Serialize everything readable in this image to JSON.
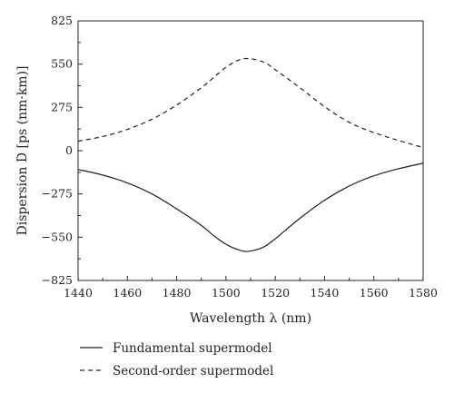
{
  "chart_data": {
    "type": "line",
    "title": "",
    "xlabel": "Wavelength λ (nm)",
    "ylabel": "Dispersion D [ps (nm·km)]",
    "xlim": [
      1440,
      1580
    ],
    "ylim": [
      -825,
      825
    ],
    "x_ticks": [
      1440,
      1460,
      1480,
      1500,
      1520,
      1540,
      1560,
      1580
    ],
    "x_tick_labels": [
      "1440",
      "1460",
      "1480",
      "1500",
      "1520",
      "1540",
      "1560",
      "1580"
    ],
    "y_ticks": [
      825,
      550,
      275,
      0,
      -275,
      -550,
      -825
    ],
    "y_tick_labels": [
      "825",
      "550",
      "275",
      "0",
      "−275",
      "−550",
      "−825"
    ],
    "grid": false,
    "legend_position": "bottom",
    "series": [
      {
        "name": "Fundamental supermodel",
        "style": "solid",
        "x": [
          1440,
          1450,
          1460,
          1470,
          1480,
          1490,
          1495,
          1500,
          1505,
          1509,
          1515,
          1520,
          1530,
          1540,
          1550,
          1560,
          1570,
          1580
        ],
        "values": [
          -120,
          -155,
          -205,
          -275,
          -370,
          -475,
          -540,
          -595,
          -630,
          -640,
          -615,
          -560,
          -430,
          -315,
          -225,
          -160,
          -115,
          -80
        ]
      },
      {
        "name": "Second-order supermodel",
        "style": "dashed",
        "x": [
          1440,
          1450,
          1460,
          1470,
          1480,
          1490,
          1495,
          1500,
          1505,
          1509,
          1515,
          1520,
          1530,
          1540,
          1550,
          1560,
          1570,
          1580
        ],
        "values": [
          60,
          90,
          135,
          200,
          290,
          400,
          465,
          530,
          575,
          585,
          565,
          515,
          400,
          280,
          180,
          115,
          65,
          20
        ]
      }
    ]
  }
}
